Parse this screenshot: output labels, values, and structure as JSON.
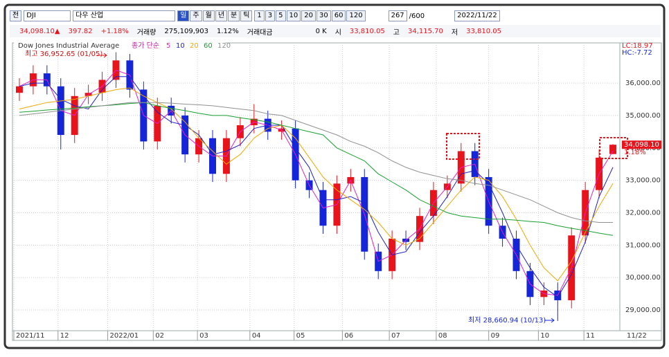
{
  "toolbar": {
    "market": "전",
    "code": "DJI",
    "name": "다우 산업",
    "periods": [
      "일",
      "주",
      "월",
      "년",
      "분",
      "틱"
    ],
    "intervals": [
      "1",
      "3",
      "5",
      "10",
      "20",
      "30",
      "60",
      "120"
    ],
    "count": "267",
    "max": "/600",
    "date": "2022/11/22"
  },
  "info": {
    "price": "34,098.10▲",
    "change": "397.82",
    "rate": "+1.18%",
    "volume_label": "거래량",
    "volume": "275,109,903",
    "volume_rate": "1.12%",
    "amount_label": "거래대금",
    "amount": "0 K",
    "open_label": "시",
    "open": "33,810.05",
    "high_label": "고",
    "high": "34,115.70",
    "low_label": "저",
    "low": "33,810.05"
  },
  "chart_data": {
    "type": "candlestick",
    "title": "Dow Jones Industrial Average",
    "legend_prefix": "종가 단순",
    "open": [
      35700,
      35900,
      36300,
      35900,
      34400,
      35600,
      35700,
      36100,
      36700,
      35800,
      34200,
      35300,
      35000,
      33800,
      34300,
      33200,
      34300,
      34700,
      34900,
      34500,
      34600,
      33000,
      32700,
      31600,
      32900,
      33100,
      30800,
      30200,
      31200,
      31100,
      31900,
      32700,
      32900,
      33900,
      33100,
      31600,
      31200,
      30200,
      29400,
      29600,
      29300,
      31300,
      32700,
      33810.05
    ],
    "high": [
      36150,
      36550,
      36550,
      36150,
      35850,
      35950,
      36350,
      36952.65,
      36900,
      36050,
      35550,
      35550,
      35250,
      34550,
      34550,
      34550,
      34950,
      35350,
      35150,
      34850,
      34850,
      33250,
      32950,
      33150,
      33350,
      33350,
      31050,
      31450,
      31450,
      32150,
      32950,
      33150,
      34150,
      34150,
      33350,
      31850,
      31450,
      30450,
      29850,
      29850,
      31550,
      32950,
      33950,
      34115.7
    ],
    "low": [
      35450,
      35650,
      35650,
      33950,
      34150,
      35350,
      35450,
      35850,
      35550,
      33950,
      33950,
      34750,
      33550,
      33550,
      32950,
      32950,
      34050,
      34450,
      34250,
      34250,
      32750,
      32450,
      31350,
      31350,
      32650,
      30550,
      29950,
      29950,
      30850,
      30850,
      31650,
      32450,
      32650,
      32850,
      31350,
      30950,
      29950,
      29150,
      29150,
      28660.94,
      29050,
      31050,
      32450,
      33810.05
    ],
    "close": [
      35900,
      36300,
      35900,
      34400,
      35600,
      35700,
      36100,
      36700,
      35800,
      34200,
      35300,
      35000,
      33800,
      34300,
      33200,
      34300,
      34700,
      34900,
      34500,
      34600,
      33000,
      32700,
      31600,
      32900,
      33100,
      30800,
      30200,
      31200,
      31100,
      31900,
      32700,
      32900,
      33900,
      33100,
      31600,
      31200,
      30200,
      29400,
      29600,
      29300,
      31300,
      32700,
      33700,
      34098.1
    ],
    "up_color": "#e8141c",
    "down_color": "#1426d8",
    "series": [
      {
        "name": "5",
        "color": "#e020c8",
        "values": [
          35900,
          36100,
          36100,
          35150,
          35000,
          35650,
          35900,
          36400,
          36250,
          35000,
          34750,
          35150,
          34400,
          34050,
          33750,
          33750,
          34500,
          34800,
          34700,
          34550,
          33800,
          32850,
          32150,
          32250,
          33000,
          31950,
          30500,
          30700,
          31150,
          31500,
          32300,
          32800,
          33400,
          33500,
          32350,
          31400,
          30700,
          29800,
          29500,
          29450,
          30300,
          32000,
          33200,
          33900
        ]
      },
      {
        "name": "10",
        "color": "#2020c8",
        "values": [
          35900,
          36000,
          36000,
          35500,
          35300,
          35200,
          35800,
          36200,
          36200,
          35600,
          35100,
          34800,
          34700,
          34400,
          33800,
          33900,
          34100,
          34600,
          34700,
          34700,
          34000,
          33400,
          32400,
          32400,
          32500,
          32300,
          31400,
          30700,
          30800,
          31400,
          31900,
          32500,
          33200,
          33300,
          32900,
          32000,
          31000,
          30300,
          29700,
          29400,
          30100,
          31100,
          32500,
          33400
        ]
      },
      {
        "name": "20",
        "color": "#f0a800",
        "values": [
          35200,
          35300,
          35400,
          35450,
          35500,
          35600,
          35700,
          35800,
          35850,
          35600,
          35400,
          35200,
          34800,
          34300,
          33900,
          33500,
          33800,
          34300,
          34600,
          34700,
          34300,
          33700,
          33100,
          32700,
          32400,
          32100,
          31700,
          31200,
          31000,
          31200,
          31700,
          32200,
          32700,
          33100,
          33000,
          32500,
          31800,
          31000,
          30300,
          29900,
          30500,
          31400,
          32200,
          32900
        ]
      },
      {
        "name": "60",
        "color": "#18a030",
        "values": [
          35100,
          35130,
          35170,
          35200,
          35230,
          35270,
          35300,
          35330,
          35370,
          35400,
          35300,
          35220,
          35150,
          35070,
          35000,
          35000,
          34930,
          34870,
          34800,
          34700,
          34600,
          34500,
          34400,
          34000,
          33800,
          33600,
          33200,
          32950,
          32700,
          32400,
          32200,
          32000,
          31900,
          31850,
          31800,
          31800,
          31770,
          31730,
          31700,
          31600,
          31520,
          31450,
          31370,
          31300
        ]
      },
      {
        "name": "120",
        "color": "#909090",
        "values": [
          35000,
          35050,
          35100,
          35150,
          35200,
          35250,
          35300,
          35350,
          35400,
          35400,
          35400,
          35380,
          35350,
          35330,
          35300,
          35250,
          35200,
          35150,
          35050,
          35000,
          34850,
          34700,
          34550,
          34400,
          34200,
          34050,
          33850,
          33600,
          33400,
          33250,
          33150,
          33050,
          33000,
          32900,
          32850,
          32700,
          32550,
          32400,
          32200,
          32000,
          31850,
          31750,
          31700,
          31700
        ]
      }
    ],
    "xlim": [
      -0.5,
      43.5
    ],
    "xticks": [
      {
        "value": -0.4,
        "label": "2021/11"
      },
      {
        "value": 2.8,
        "label": "12"
      },
      {
        "value": 6.4,
        "label": "2022/01"
      },
      {
        "value": 9.7,
        "label": "02"
      },
      {
        "value": 12.9,
        "label": "03"
      },
      {
        "value": 16.7,
        "label": "04"
      },
      {
        "value": 19.9,
        "label": "05"
      },
      {
        "value": 23.4,
        "label": "06"
      },
      {
        "value": 26.8,
        "label": "07"
      },
      {
        "value": 30.2,
        "label": "08"
      },
      {
        "value": 34,
        "label": "09"
      },
      {
        "value": 37.6,
        "label": "10"
      },
      {
        "value": 40.9,
        "label": "11"
      }
    ],
    "x_end_label": "11/22",
    "ylim": [
      28360,
      37240
    ],
    "yticks": [
      {
        "value": 29000,
        "label": "29,000.00"
      },
      {
        "value": 30000,
        "label": "30,000.00"
      },
      {
        "value": 31000,
        "label": "31,000.00"
      },
      {
        "value": 32000,
        "label": "32,000.00"
      },
      {
        "value": 33000,
        "label": "33,000.00"
      },
      {
        "value": 34000,
        "label": "34,000.00"
      },
      {
        "value": 35000,
        "label": "35,000.00"
      },
      {
        "value": 36000,
        "label": "36,000.00"
      }
    ],
    "last_label": "34,098.10",
    "last_rate": "1.18%",
    "lc": "LC:18.97",
    "hc": "HC:-7.72",
    "annotations": {
      "high": "최고 36,952.65 (01/05)",
      "low": "최저 28,660.94 (10/13)"
    },
    "grid": true
  }
}
